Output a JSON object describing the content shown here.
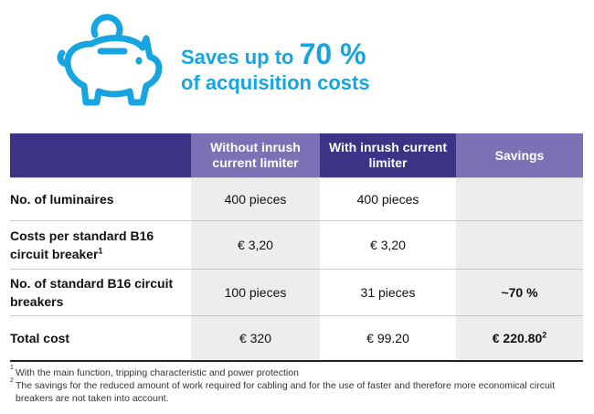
{
  "header": {
    "line1_prefix": "Saves up to ",
    "line1_highlight": "70 %",
    "line2": "of acquisition costs",
    "icon": "piggy-bank-icon",
    "accent_color": "#16a5e0"
  },
  "table": {
    "columns": [
      {
        "label": "",
        "bg": "#3c3286"
      },
      {
        "label": "Without inrush current limiter",
        "bg": "#7a72b4"
      },
      {
        "label": "With inrush current limiter",
        "bg": "#3c3286"
      },
      {
        "label": "Savings",
        "bg": "#7a72b4"
      }
    ],
    "rows": [
      {
        "label": "No. of luminaires",
        "label_sup": "",
        "without": "400 pieces",
        "with": "400 pieces",
        "savings": "",
        "savings_sup": ""
      },
      {
        "label": "Costs per standard B16 circuit breaker",
        "label_sup": "1",
        "without": "€ 3,20",
        "with": "€ 3,20",
        "savings": "",
        "savings_sup": ""
      },
      {
        "label": "No. of standard B16 circuit breakers",
        "label_sup": "",
        "without": "100 pieces",
        "with": "31 pieces",
        "savings": "~70 %",
        "savings_sup": ""
      },
      {
        "label": "Total cost",
        "label_sup": "",
        "without": "€ 320",
        "with": "€ 99.20",
        "savings": "€ 220.80",
        "savings_sup": "2"
      }
    ]
  },
  "footnotes": [
    {
      "mark": "1",
      "text": "With the main function, tripping characteristic and power protection"
    },
    {
      "mark": "2",
      "text": "The savings for the reduced amount of work required for cabling and for the use of faster and therefore more economical circuit breakers are not taken into account."
    }
  ]
}
